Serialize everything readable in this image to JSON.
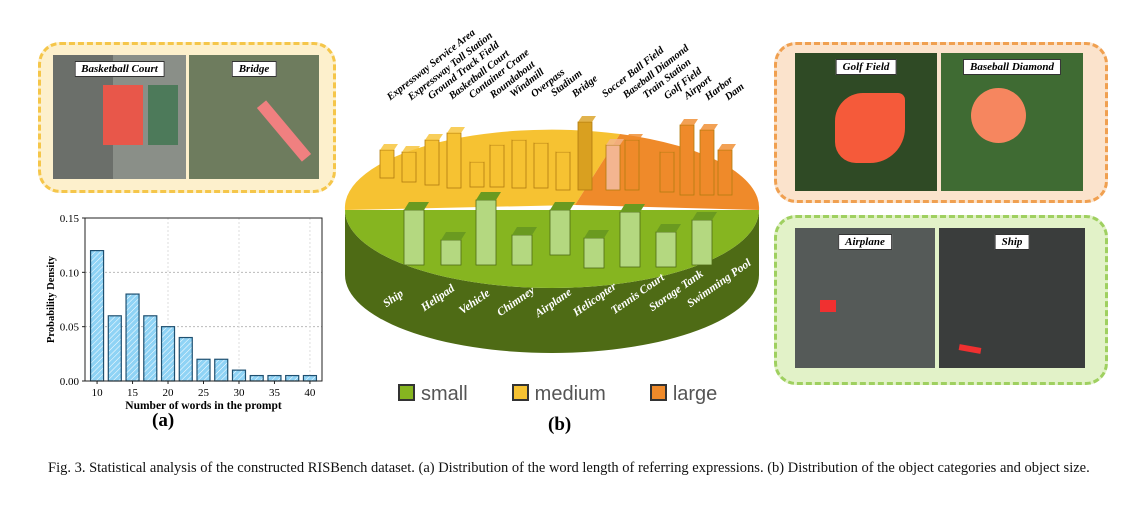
{
  "panels": {
    "top_left": [
      {
        "label": "Basketball Court"
      },
      {
        "label": "Bridge"
      }
    ],
    "top_right": [
      {
        "label": "Golf Field"
      },
      {
        "label": "Baseball Diamond"
      }
    ],
    "bottom_right": [
      {
        "label": "Airplane"
      },
      {
        "label": "Ship"
      }
    ],
    "colors": {
      "small": "#7fb21f",
      "medium": "#f5c030",
      "large": "#ef8a2a"
    }
  },
  "pie": {
    "top_categories": [
      "Expressway Service Area",
      "Expressway Toll Station",
      "Ground Track Field",
      "Basketball Court",
      "Container Crane",
      "Roundabout",
      "Windmill",
      "Overpass",
      "Stadium",
      "Bridge",
      "Soccer Ball Field",
      "Baseball Diamond",
      "Train Station",
      "Golf Field",
      "Airport",
      "Harbor",
      "Dam"
    ],
    "small_categories": [
      "Ship",
      "Helipad",
      "Vehicle",
      "Chimney",
      "Airplane",
      "Helicopter",
      "Tennis Court",
      "Storage Tank",
      "Swimming Pool"
    ],
    "legend": [
      "small",
      "medium",
      "large"
    ],
    "sublabel": "(b)"
  },
  "chart_data": {
    "type": "bar",
    "x": [
      10,
      12.5,
      15,
      17.5,
      20,
      22.5,
      25,
      27.5,
      30,
      32.5,
      35,
      37.5,
      40
    ],
    "values": [
      0.12,
      0.06,
      0.08,
      0.06,
      0.05,
      0.04,
      0.02,
      0.02,
      0.01,
      0.005,
      0.005,
      0.005,
      0.005
    ],
    "xlabel": "Number of words in the prompt",
    "ylabel": "Probability Density",
    "ylim": [
      0,
      0.15
    ],
    "xticks": [
      "10",
      "15",
      "20",
      "25",
      "30",
      "35",
      "40"
    ],
    "yticks": [
      "0.00",
      "0.05",
      "0.10",
      "0.15"
    ],
    "grid": true,
    "bar_color": "#8fd3f5",
    "sublabel": "(a)"
  },
  "caption": "Fig. 3.  Statistical analysis of the constructed RISBench dataset. (a) Distribution of the word length of referring expressions. (b) Distribution of the object categories and object size."
}
